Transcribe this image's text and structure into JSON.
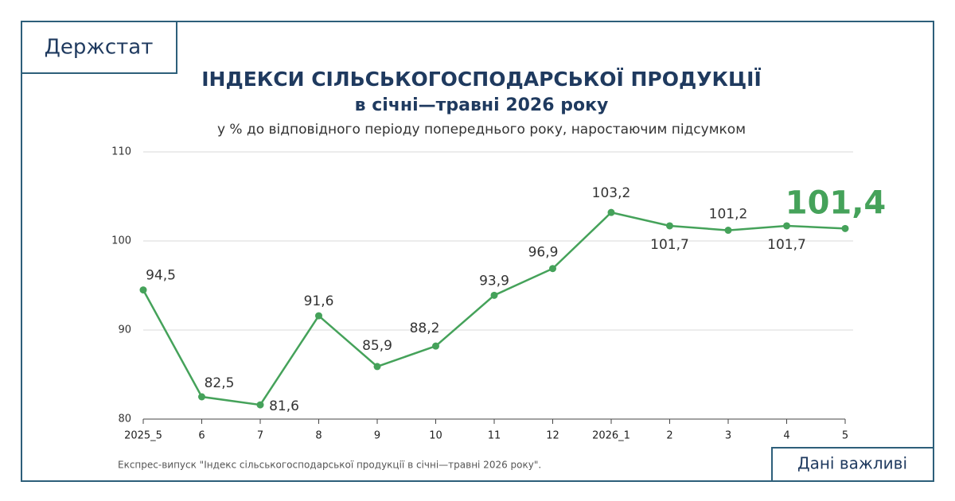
{
  "header": {
    "brand": "Держстат",
    "tag": "Дані важливі"
  },
  "chart_data": {
    "type": "line",
    "title": "ІНДЕКСИ СІЛЬСЬКОГОСПОДАРСЬКОЇ ПРОДУКЦІЇ",
    "subtitle": "в січні—травні 2026 року",
    "y_label": "у % до відповідного періоду попереднього року, наростаючим підсумком",
    "categories": [
      "2025_5",
      "6",
      "7",
      "8",
      "9",
      "10",
      "11",
      "12",
      "2026_1",
      "2",
      "3",
      "4",
      "5"
    ],
    "series": [
      {
        "name": "Індекс",
        "color": "#45a25a",
        "values": [
          94.5,
          82.5,
          81.6,
          91.6,
          85.9,
          88.2,
          93.9,
          96.9,
          103.2,
          101.7,
          101.2,
          101.7,
          101.4
        ],
        "value_labels": [
          "94,5",
          "82,5",
          "81,6",
          "91,6",
          "85,9",
          "88,2",
          "93,9",
          "96,9",
          "103,2",
          "101,7",
          "101,2",
          "101,7",
          "101,4"
        ]
      }
    ],
    "ylim": [
      80,
      110
    ],
    "yticks": [
      80,
      90,
      100,
      110
    ],
    "grid": true,
    "source": "Експрес-випуск \"Індекс сільськогосподарської продукції в січні—травні 2026 року\"."
  }
}
